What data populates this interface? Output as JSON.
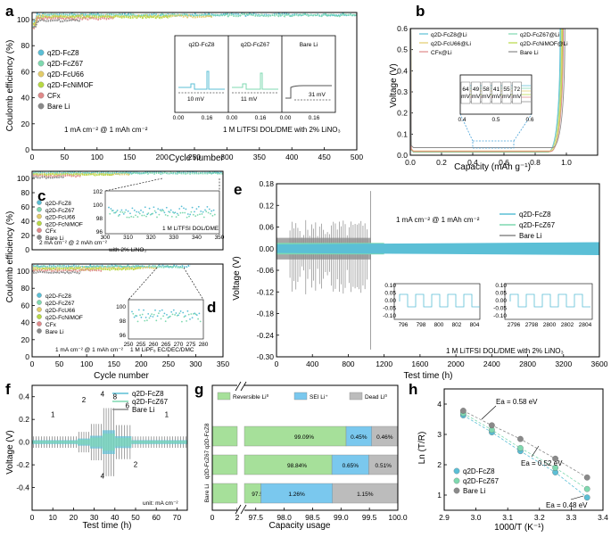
{
  "panels": {
    "a": {
      "letter": "a"
    },
    "b": {
      "letter": "b"
    },
    "c": {
      "letter": "c"
    },
    "d": {
      "letter": "d"
    },
    "e": {
      "letter": "e"
    },
    "f": {
      "letter": "f"
    },
    "g": {
      "letter": "g"
    },
    "h": {
      "letter": "h"
    }
  },
  "colors": {
    "FcZ8": "#5bbfd6",
    "FcZ67": "#7fd9b0",
    "FcU66": "#e3cc6a",
    "FcNiMOF": "#b8d944",
    "CFx": "#e08a8a",
    "Bare": "#8a8a8a",
    "reversible": "#a6e09a",
    "sei": "#7ac8ee",
    "dead": "#bcbcbc"
  },
  "chart_data": [
    {
      "id": "a",
      "type": "scatter",
      "xlabel": "Cycle number",
      "ylabel": "Coulomb efficiency (%)",
      "xlim": [
        0,
        500
      ],
      "ylim": [
        0,
        100
      ],
      "xticks": [
        "0",
        "50",
        "100",
        "150",
        "200",
        "250",
        "300",
        "350",
        "400",
        "450",
        "500"
      ],
      "yticks": [
        "0",
        "20",
        "40",
        "60",
        "80",
        "100"
      ],
      "legend": [
        "q2D-FcZ8",
        "q2D-FcZ67",
        "q2D-FcU66",
        "q2D-FcNiMOF",
        "CFx",
        "Bare Li"
      ],
      "annotation_left": "1 mA cm⁻² @ 1 mAh cm⁻²",
      "annotation_right": "1 M LiTFSI DOL/DME with 2% LiNO₃",
      "series": [
        {
          "name": "q2D-FcZ8",
          "end_cycle": 500,
          "ce": 99.1
        },
        {
          "name": "q2D-FcZ67",
          "end_cycle": 500,
          "ce": 98.8
        },
        {
          "name": "q2D-FcU66",
          "end_cycle": 280,
          "ce": 98.0
        },
        {
          "name": "q2D-FcNiMOF",
          "end_cycle": 215,
          "ce": 97.5
        },
        {
          "name": "CFx",
          "end_cycle": 125,
          "ce": 96.5
        },
        {
          "name": "Bare Li",
          "end_cycle": 75,
          "ce": 95.0
        }
      ],
      "inset": {
        "labels": [
          "q2D-FcZ8",
          "q2D-FcZ67",
          "Bare Li"
        ],
        "overpotentials": [
          "10 mV",
          "11 mV",
          "31 mV"
        ],
        "xticks": [
          "0.00",
          "0.16"
        ]
      }
    },
    {
      "id": "b",
      "type": "line",
      "xlabel": "Capacity (mAh g⁻¹)",
      "ylabel": "Voltage (V)",
      "xlim": [
        0,
        1.2
      ],
      "ylim": [
        0,
        0.6
      ],
      "xticks": [
        "0.0",
        "0.2",
        "0.4",
        "0.6",
        "0.8",
        "1.0"
      ],
      "yticks": [
        "0.0",
        "0.1",
        "0.2",
        "0.3",
        "0.4",
        "0.5",
        "0.6"
      ],
      "legend": [
        "q2D-FcZ8@Li",
        "q2D-FcZ67@Li",
        "q2D-FcU66@Li",
        "q2D-FcNiMOF@Li",
        "CFx@Li",
        "Bare Li"
      ],
      "series": [
        {
          "name": "q2D-FcZ8@Li",
          "plateau": 0.014,
          "end": 0.96
        },
        {
          "name": "q2D-FcZ67@Li",
          "plateau": 0.015,
          "end": 0.965
        },
        {
          "name": "q2D-FcU66@Li",
          "plateau": 0.02,
          "end": 0.97
        },
        {
          "name": "q2D-FcNiMOF@Li",
          "plateau": 0.017,
          "end": 0.975
        },
        {
          "name": "CFx@Li",
          "plateau": 0.018,
          "end": 0.98
        },
        {
          "name": "Bare Li",
          "plateau": 0.036,
          "end": 0.99
        }
      ],
      "inset": {
        "values": [
          "64",
          "49",
          "58",
          "41",
          "55",
          "72"
        ],
        "unit": "mV",
        "xticks": [
          "0.4",
          "0.5",
          "0.6"
        ]
      }
    },
    {
      "id": "c",
      "type": "scatter",
      "xlabel": "",
      "ylabel": "Coulomb efficiency (%)",
      "xlim": [
        0,
        350
      ],
      "ylim": [
        0,
        100
      ],
      "yticks": [
        "0",
        "20",
        "40",
        "60",
        "80",
        "100"
      ],
      "legend": [
        "q2D-FcZ8",
        "q2D-FcZ67",
        "q2D-FcU66",
        "q2D-FcNiMOF",
        "CFx",
        "Bare Li"
      ],
      "annotation": "2 mA cm⁻² @ 2 mAh cm⁻²",
      "inset": {
        "xticks": [
          "300",
          "310",
          "320",
          "330",
          "340",
          "350"
        ],
        "yticks": [
          "96",
          "98",
          "100",
          "102"
        ],
        "note_line1": "1 M LiTFSI DOL/DME",
        "note_line2": "with 2% LiNO₃"
      }
    },
    {
      "id": "d",
      "type": "scatter",
      "xlabel": "Cycle number",
      "ylabel": "",
      "xlim": [
        0,
        350
      ],
      "ylim": [
        0,
        100
      ],
      "xticks": [
        "0",
        "50",
        "100",
        "150",
        "200",
        "250",
        "300",
        "350"
      ],
      "yticks": [
        "0",
        "20",
        "40",
        "60",
        "80",
        "100"
      ],
      "legend": [
        "q2D-FcZ8",
        "q2D-FcZ67",
        "q2D-FcU66",
        "q2D-FcNiMOF",
        "CFx",
        "Bare Li"
      ],
      "annotation": "1 mA cm⁻² @ 1 mAh cm⁻²",
      "inset": {
        "xticks": [
          "250",
          "255",
          "260",
          "265",
          "270",
          "275",
          "280"
        ],
        "yticks": [
          "96",
          "98",
          "100"
        ],
        "note": "1 M LiPF₆ EC/DEC/DMC"
      }
    },
    {
      "id": "e",
      "type": "line",
      "xlabel": "Test time (h)",
      "ylabel": "Voltage (V)",
      "xlim": [
        0,
        3600
      ],
      "ylim": [
        -0.3,
        0.18
      ],
      "xticks": [
        "0",
        "400",
        "800",
        "1200",
        "1600",
        "2000",
        "2400",
        "2800",
        "3200",
        "3600"
      ],
      "yticks": [
        "0.18",
        "0.12",
        "0.06",
        "0.00",
        "-0.06",
        "-0.12",
        "-0.18",
        "-0.24",
        "-0.30"
      ],
      "legend": [
        "q2D-FcZ8",
        "q2D-FcZ67",
        "Bare Li"
      ],
      "annotation_top": "1 mA cm⁻² @ 1 mAh cm⁻²",
      "annotation_bottom": "1 M LiTFSI DOL/DME with 2% LiNO₃",
      "bare_failure_h": 1050,
      "amplitude_v": {
        "q2D-FcZ8": 0.012,
        "q2D-FcZ67": 0.016,
        "Bare Li": 0.03
      },
      "inset1": {
        "xticks": [
          "796",
          "798",
          "800",
          "802",
          "804"
        ],
        "yticks": [
          "0.10",
          "0.05",
          "0.00",
          "-0.05",
          "-0.10"
        ]
      },
      "inset2": {
        "xticks": [
          "2796",
          "2798",
          "2800",
          "2802",
          "2804"
        ],
        "yticks": [
          "0.10",
          "0.05",
          "0.00",
          "-0.05",
          "-0.10"
        ]
      }
    },
    {
      "id": "f",
      "type": "line",
      "xlabel": "Test time (h)",
      "ylabel": "Voltage (V)",
      "xlim": [
        0,
        75
      ],
      "ylim": [
        -0.6,
        0.5
      ],
      "xticks": [
        "0",
        "10",
        "20",
        "30",
        "40",
        "50",
        "60",
        "70"
      ],
      "yticks": [
        "-0.4",
        "-0.2",
        "0.0",
        "0.2",
        "0.4"
      ],
      "legend": [
        "q2D-FcZ8",
        "q2D-FcZ67",
        "Bare Li"
      ],
      "current_labels_top": [
        "1",
        "2",
        "4",
        "8",
        "6",
        "1"
      ],
      "current_labels_bottom": [
        "4",
        "2"
      ],
      "unit_note": "unit: mA cm⁻²",
      "steps_h": [
        0,
        22,
        28,
        34,
        40,
        48,
        75
      ]
    },
    {
      "id": "g",
      "type": "bar",
      "xlabel": "Capacity usage",
      "ylabel": "",
      "xlim_broken": [
        [
          0,
          2
        ],
        [
          97.3,
          100
        ]
      ],
      "xticks": [
        "0",
        "2",
        "97.5",
        "98.0",
        "98.5",
        "99.0",
        "99.5",
        "100.0"
      ],
      "categories": [
        "q2D-FcZ8",
        "q2D-FcZ67",
        "Bare Li"
      ],
      "legend": [
        "Reversible Li⁰",
        "SEI Li⁺",
        "Dead Li⁰"
      ],
      "series": [
        {
          "name": "Reversible Li⁰",
          "values": [
            99.09,
            98.84,
            97.59
          ],
          "labels": [
            "99.09%",
            "98.84%",
            "97.59%"
          ]
        },
        {
          "name": "SEI Li⁺",
          "values": [
            0.45,
            0.65,
            1.26
          ],
          "labels": [
            "0.45%",
            "0.65%",
            "1.26%"
          ]
        },
        {
          "name": "Dead Li⁰",
          "values": [
            0.46,
            0.51,
            1.15
          ],
          "labels": [
            "0.46%",
            "0.51%",
            "1.15%"
          ]
        }
      ]
    },
    {
      "id": "h",
      "type": "scatter",
      "xlabel": "1000/T (K⁻¹)",
      "ylabel": "Ln (T/R)",
      "xlim": [
        2.9,
        3.4
      ],
      "ylim": [
        0.5,
        4.5
      ],
      "xticks": [
        "2.9",
        "3.0",
        "3.1",
        "3.2",
        "3.3",
        "3.4"
      ],
      "yticks": [
        "1",
        "2",
        "3",
        "4"
      ],
      "legend": [
        "q2D-FcZ8",
        "q2D-FcZ67",
        "Bare Li"
      ],
      "ea_labels": [
        "Ea = 0.58 eV",
        "Ea = 0.52 eV",
        "Ea = 0.48 eV"
      ],
      "x": [
        2.96,
        3.05,
        3.14,
        3.25,
        3.35
      ],
      "series": [
        {
          "name": "q2D-FcZ8",
          "y": [
            3.63,
            3.07,
            2.45,
            1.75,
            0.92
          ]
        },
        {
          "name": "q2D-FcZ67",
          "y": [
            3.7,
            3.15,
            2.55,
            1.9,
            1.2
          ]
        },
        {
          "name": "Bare Li",
          "y": [
            3.78,
            3.3,
            2.85,
            2.2,
            1.58
          ]
        }
      ]
    }
  ]
}
